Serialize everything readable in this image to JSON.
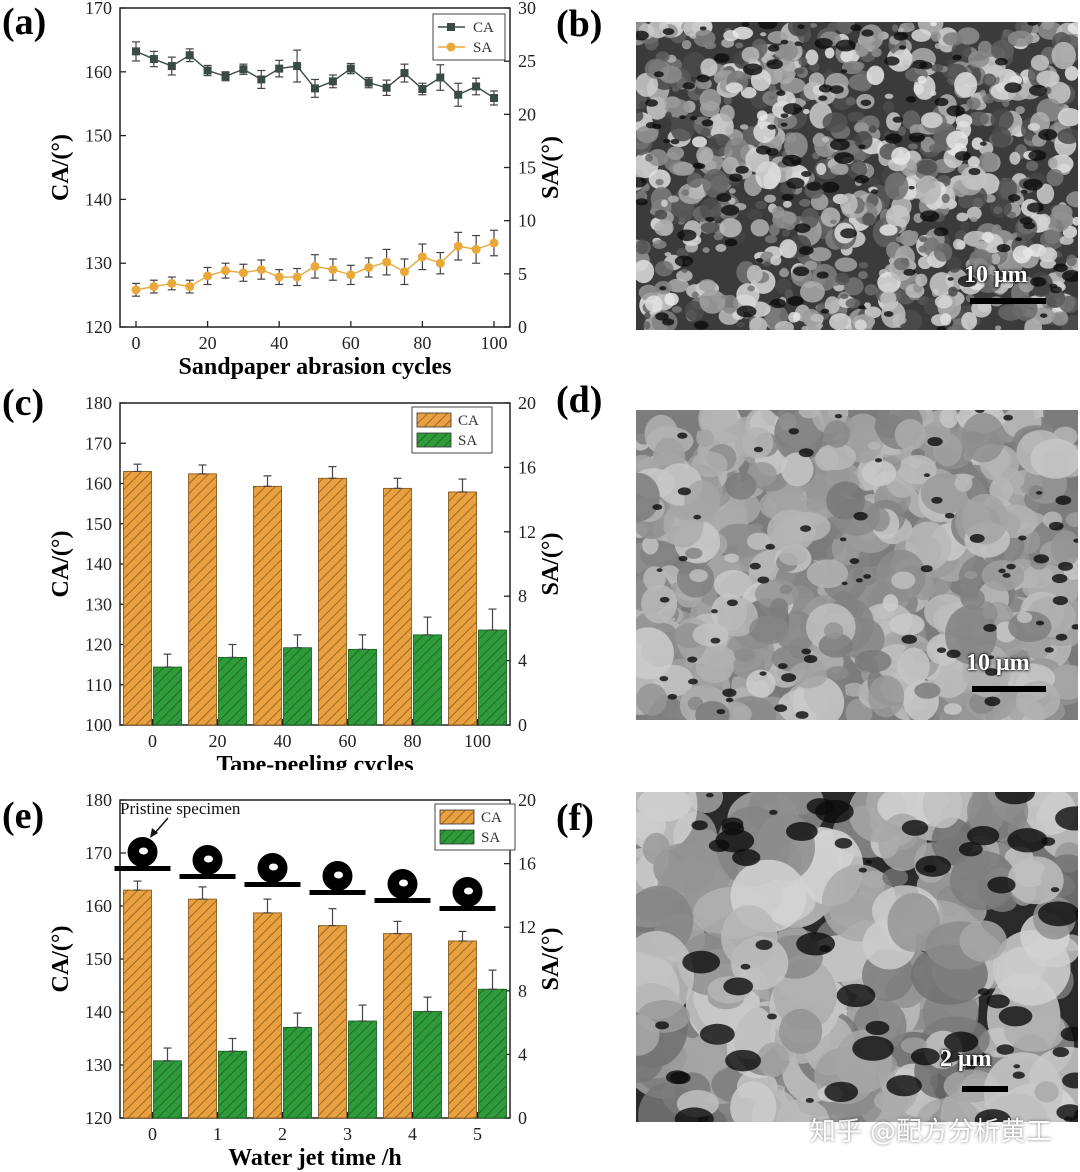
{
  "panels": {
    "a": "(a)",
    "b": "(b)",
    "c": "(c)",
    "d": "(d)",
    "e": "(e)",
    "f": "(f)"
  },
  "sem_images": {
    "b": {
      "scale_label": "10 μm",
      "tone": "dark"
    },
    "d": {
      "scale_label": "10 μm",
      "tone": "light"
    },
    "f": {
      "scale_label": "2 μm",
      "tone": "coarse"
    }
  },
  "watermark": "知乎 @配方分析黄工",
  "colors": {
    "line_ca": "#3a4a45",
    "line_sa": "#e8a83a",
    "bar_ca": "#e8a040",
    "bar_sa": "#2f9a3a"
  },
  "chart_data": [
    {
      "id": "a",
      "type": "line",
      "xlabel": "Sandpaper abrasion cycles",
      "ylabel": "CA/(°)",
      "y2label": "SA/(°)",
      "xlim": [
        0,
        100
      ],
      "ylim": [
        120,
        170
      ],
      "y2lim": [
        0,
        30
      ],
      "xticks": [
        "0",
        "20",
        "40",
        "60",
        "80",
        "100"
      ],
      "yticks": [
        "120",
        "130",
        "140",
        "150",
        "160",
        "170"
      ],
      "y2ticks": [
        "0",
        "5",
        "10",
        "15",
        "20",
        "25",
        "30"
      ],
      "x": [
        0,
        5,
        10,
        15,
        20,
        25,
        30,
        35,
        40,
        45,
        50,
        55,
        60,
        65,
        70,
        75,
        80,
        85,
        90,
        95,
        100
      ],
      "legend": [
        "CA",
        "SA"
      ],
      "legend_position": "top-right",
      "series": [
        {
          "name": "CA",
          "axis": "left",
          "values": [
            163.2,
            162.0,
            160.9,
            162.6,
            160.2,
            159.3,
            160.4,
            158.8,
            160.5,
            160.9,
            157.4,
            158.5,
            160.5,
            158.3,
            157.5,
            159.8,
            157.3,
            159.1,
            156.4,
            157.7,
            155.9
          ],
          "errors": [
            1.5,
            1.2,
            1.4,
            1.0,
            0.8,
            0.7,
            0.8,
            1.4,
            1.3,
            2.5,
            1.4,
            1.0,
            0.8,
            0.8,
            1.2,
            1.4,
            0.9,
            2.0,
            1.8,
            1.3,
            1.1
          ]
        },
        {
          "name": "SA",
          "axis": "right",
          "values": [
            3.5,
            3.8,
            4.1,
            3.8,
            4.8,
            5.3,
            5.1,
            5.4,
            4.7,
            4.7,
            5.7,
            5.4,
            4.9,
            5.6,
            6.1,
            5.2,
            6.6,
            6.0,
            7.6,
            7.3,
            7.9
          ],
          "errors": [
            0.6,
            0.6,
            0.6,
            0.6,
            0.8,
            0.7,
            0.8,
            0.9,
            0.7,
            0.8,
            1.1,
            1.0,
            0.9,
            0.9,
            1.2,
            1.2,
            1.2,
            1.0,
            1.3,
            1.3,
            1.2
          ]
        }
      ]
    },
    {
      "id": "c",
      "type": "bar",
      "xlabel": "Tape-peeling cycles",
      "ylabel": "CA/(°)",
      "y2label": "SA/(°)",
      "categories": [
        "0",
        "20",
        "40",
        "60",
        "80",
        "100"
      ],
      "ylim": [
        100,
        180
      ],
      "y2lim": [
        0,
        20
      ],
      "yticks": [
        "100",
        "110",
        "120",
        "130",
        "140",
        "150",
        "160",
        "170",
        "180"
      ],
      "y2ticks": [
        "0",
        "4",
        "8",
        "12",
        "16",
        "20"
      ],
      "legend": [
        "CA",
        "SA"
      ],
      "legend_position": "top-right",
      "series": [
        {
          "name": "CA",
          "axis": "left",
          "values": [
            163.0,
            162.4,
            159.3,
            161.3,
            158.8,
            157.9
          ],
          "errors": [
            1.8,
            2.2,
            2.6,
            2.9,
            2.5,
            3.2
          ]
        },
        {
          "name": "SA",
          "axis": "right",
          "values": [
            3.6,
            4.2,
            4.8,
            4.7,
            5.6,
            5.9
          ],
          "errors": [
            0.8,
            0.8,
            0.8,
            0.9,
            1.1,
            1.3
          ]
        }
      ]
    },
    {
      "id": "e",
      "type": "bar",
      "xlabel": "Water jet time /h",
      "ylabel": "CA/(°)",
      "y2label": "SA/(°)",
      "categories": [
        "0",
        "1",
        "2",
        "3",
        "4",
        "5"
      ],
      "ylim": [
        120,
        180
      ],
      "y2lim": [
        0,
        20
      ],
      "yticks": [
        "120",
        "130",
        "140",
        "150",
        "160",
        "170",
        "180"
      ],
      "y2ticks": [
        "0",
        "4",
        "8",
        "12",
        "16",
        "20"
      ],
      "legend": [
        "CA",
        "SA"
      ],
      "legend_position": "top-right",
      "annotation": "Pristine specimen",
      "series": [
        {
          "name": "CA",
          "axis": "left",
          "values": [
            163.0,
            161.3,
            158.7,
            156.3,
            154.8,
            153.4
          ],
          "errors": [
            1.7,
            2.3,
            2.6,
            3.2,
            2.3,
            1.8
          ]
        },
        {
          "name": "SA",
          "axis": "right",
          "values": [
            3.6,
            4.2,
            5.7,
            6.1,
            6.7,
            8.1
          ],
          "errors": [
            0.8,
            0.8,
            0.9,
            1.0,
            0.9,
            1.2
          ]
        }
      ]
    }
  ]
}
